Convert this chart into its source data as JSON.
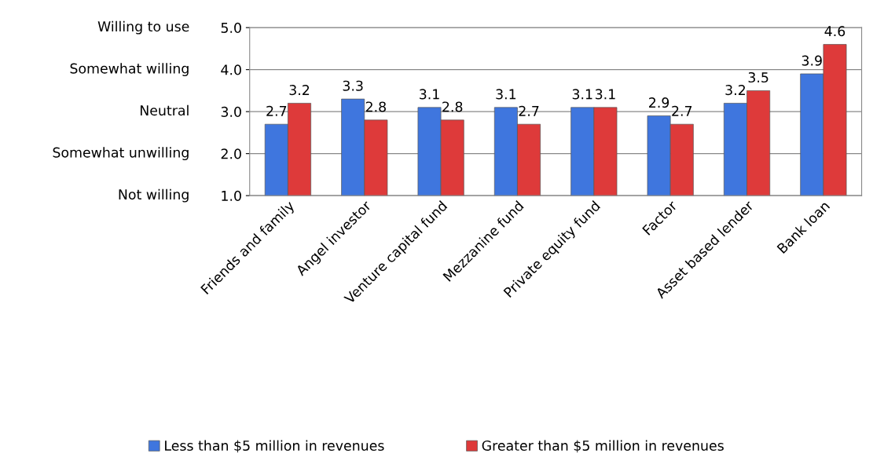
{
  "chart_data": {
    "type": "bar",
    "categories": [
      "Friends and family",
      "Angel investor",
      "Venture capital fund",
      "Mezzanine fund",
      "Private equity fund",
      "Factor",
      "Asset based lender",
      "Bank loan"
    ],
    "series": [
      {
        "name": "Less than $5 million in revenues",
        "color": "#3f76de",
        "values": [
          2.7,
          3.3,
          3.1,
          3.1,
          3.1,
          2.9,
          3.2,
          3.9
        ]
      },
      {
        "name": "Greater than $5 million in revenues",
        "color": "#de3a3a",
        "values": [
          3.2,
          2.8,
          2.8,
          2.7,
          3.1,
          2.7,
          3.5,
          4.6
        ]
      }
    ],
    "ylim": [
      1.0,
      5.0
    ],
    "yticks": [
      {
        "value": 1.0,
        "label": "1.0"
      },
      {
        "value": 2.0,
        "label": "2.0"
      },
      {
        "value": 3.0,
        "label": "3.0"
      },
      {
        "value": 4.0,
        "label": "4.0"
      },
      {
        "value": 5.0,
        "label": "5.0"
      }
    ],
    "annotations": [
      "Willing to use",
      "Somewhat willing",
      "Neutral",
      "Somewhat unwilling",
      "Not willing"
    ],
    "grid": "y",
    "legend": "bottom",
    "data_labels": true
  }
}
